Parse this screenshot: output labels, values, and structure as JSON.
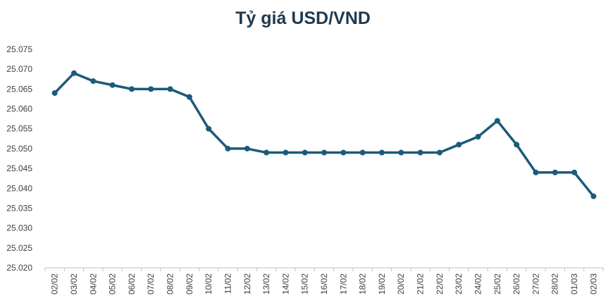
{
  "chart_data": {
    "type": "line",
    "title": "Tỷ giá USD/VND",
    "categories": [
      "02/02",
      "03/02",
      "04/02",
      "05/02",
      "06/02",
      "07/02",
      "08/02",
      "09/02",
      "10/02",
      "11/02",
      "12/02",
      "13/02",
      "14/02",
      "15/02",
      "16/02",
      "17/02",
      "18/02",
      "19/02",
      "20/02",
      "21/02",
      "22/02",
      "23/02",
      "24/02",
      "25/02",
      "26/02",
      "27/02",
      "28/02",
      "01/03",
      "02/03"
    ],
    "series": [
      {
        "values": [
          25.064,
          25.069,
          25.067,
          25.066,
          25.065,
          25.065,
          25.065,
          25.063,
          25.055,
          25.05,
          25.05,
          25.049,
          25.049,
          25.049,
          25.049,
          25.049,
          25.049,
          25.049,
          25.049,
          25.049,
          25.049,
          25.051,
          25.053,
          25.057,
          25.051,
          25.044,
          25.044,
          25.044,
          25.038
        ]
      }
    ],
    "ylim": [
      25.02,
      25.075
    ],
    "yticks": [
      "25.020",
      "25.025",
      "25.030",
      "25.035",
      "25.040",
      "25.045",
      "25.050",
      "25.055",
      "25.060",
      "25.065",
      "25.070",
      "25.075"
    ],
    "xlabel": "",
    "ylabel": "",
    "grid": false,
    "line_color": "#1c5a7a"
  }
}
